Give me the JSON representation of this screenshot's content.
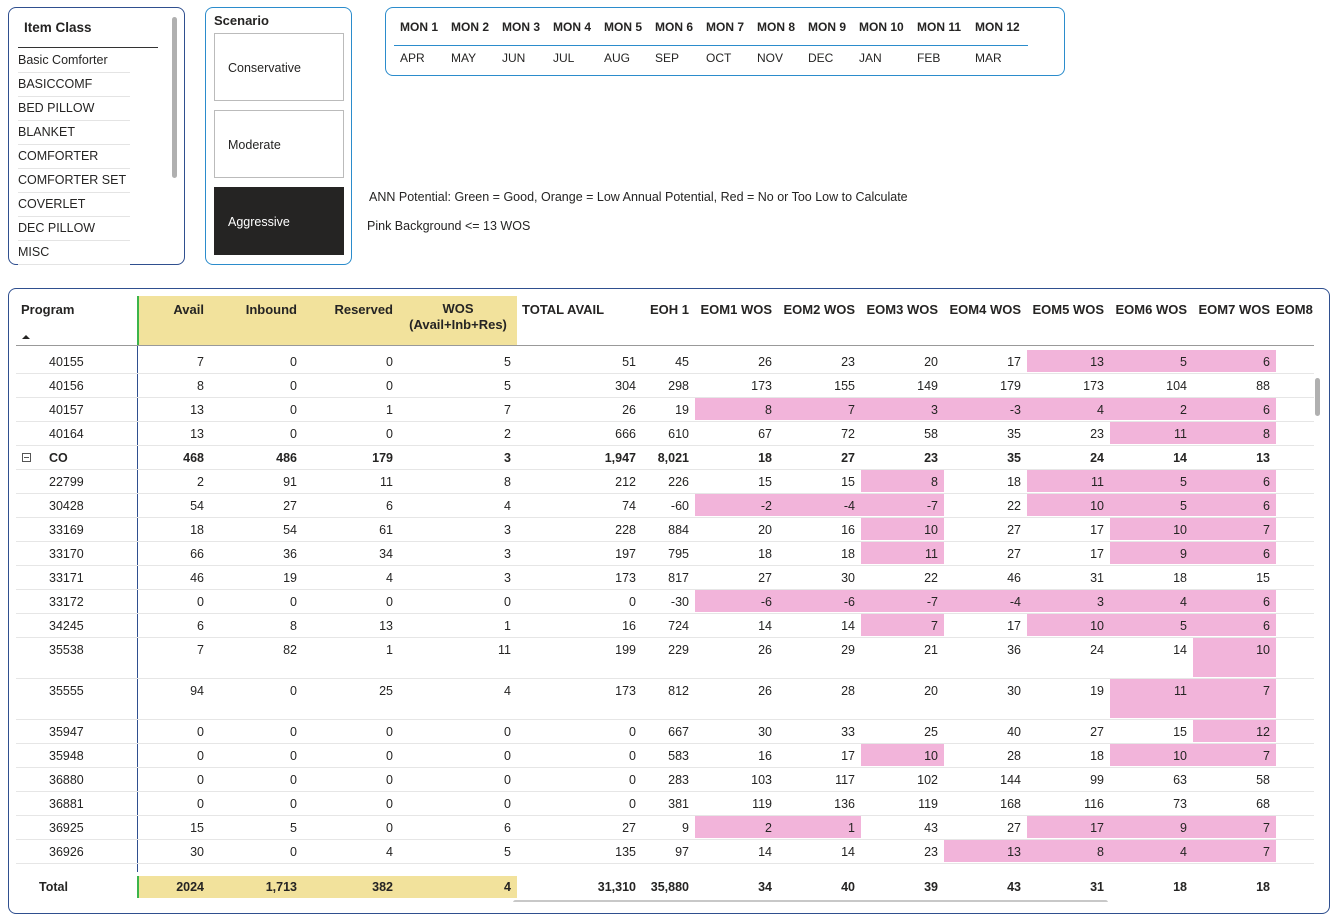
{
  "item_class": {
    "title": "Item Class",
    "items": [
      "Basic Comforter",
      "BASICCOMF",
      "BED PILLOW",
      "BLANKET",
      "COMFORTER",
      "COMFORTER SET",
      "COVERLET",
      "DEC PILLOW",
      "MISC"
    ]
  },
  "scenario": {
    "title": "Scenario",
    "options": [
      "Conservative",
      "Moderate",
      "Aggressive"
    ],
    "selected": 2
  },
  "months": {
    "headers": [
      "MON 1",
      "MON 2",
      "MON 3",
      "MON 4",
      "MON 5",
      "MON 6",
      "MON 7",
      "MON 8",
      "MON 9",
      "MON 10",
      "MON 11",
      "MON 12"
    ],
    "values": [
      "APR",
      "MAY",
      "JUN",
      "JUL",
      "AUG",
      "SEP",
      "OCT",
      "NOV",
      "DEC",
      "JAN",
      "FEB",
      "MAR"
    ]
  },
  "notes": [
    "ANN Potential: Green = Good, Orange = Low Annual Potential, Red = No or Too Low to Calculate",
    "Pink Background <= 13 WOS"
  ],
  "table": {
    "program_header": "Program",
    "columns": [
      "Avail",
      "Inbound",
      "Reserved",
      "WOS\n(Avail+Inb+Res)",
      "TOTAL AVAIL",
      "EOH 1",
      "EOM1 WOS",
      "EOM2 WOS",
      "EOM3 WOS",
      "EOM4 WOS",
      "EOM5 WOS",
      "EOM6 WOS",
      "EOM7 WOS",
      "EOM8"
    ],
    "rows": [
      {
        "program": "40155",
        "cells": [
          7,
          0,
          0,
          5,
          51,
          45,
          26,
          23,
          20,
          17,
          13,
          5,
          6
        ],
        "pink": [
          10,
          11,
          12
        ]
      },
      {
        "program": "40156",
        "cells": [
          8,
          0,
          0,
          5,
          304,
          298,
          173,
          155,
          149,
          179,
          173,
          104,
          88
        ],
        "pink": []
      },
      {
        "program": "40157",
        "cells": [
          13,
          0,
          1,
          7,
          26,
          19,
          8,
          7,
          3,
          -3,
          4,
          2,
          6
        ],
        "pink": [
          6,
          7,
          8,
          9,
          10,
          11,
          12
        ]
      },
      {
        "program": "40164",
        "cells": [
          13,
          0,
          0,
          2,
          666,
          610,
          67,
          72,
          58,
          35,
          23,
          11,
          8
        ],
        "pink": [
          11,
          12
        ]
      },
      {
        "program": "CO",
        "cells": [
          468,
          486,
          179,
          3,
          "1,947",
          "8,021",
          18,
          27,
          23,
          35,
          24,
          14,
          13
        ],
        "pink": [],
        "bold": true
      },
      {
        "program": "22799",
        "cells": [
          2,
          91,
          11,
          8,
          212,
          226,
          15,
          15,
          8,
          18,
          11,
          5,
          6
        ],
        "pink": [
          8,
          10,
          11,
          12
        ]
      },
      {
        "program": "30428",
        "cells": [
          54,
          27,
          6,
          4,
          74,
          -60,
          -2,
          -4,
          -7,
          22,
          10,
          5,
          6
        ],
        "pink": [
          6,
          7,
          8,
          10,
          11,
          12
        ]
      },
      {
        "program": "33169",
        "cells": [
          18,
          54,
          61,
          3,
          228,
          884,
          20,
          16,
          10,
          27,
          17,
          10,
          7
        ],
        "pink": [
          8,
          11,
          12
        ]
      },
      {
        "program": "33170",
        "cells": [
          66,
          36,
          34,
          3,
          197,
          795,
          18,
          18,
          11,
          27,
          17,
          9,
          6
        ],
        "pink": [
          8,
          11,
          12
        ]
      },
      {
        "program": "33171",
        "cells": [
          46,
          19,
          4,
          3,
          173,
          817,
          27,
          30,
          22,
          46,
          31,
          18,
          15
        ],
        "pink": []
      },
      {
        "program": "33172",
        "cells": [
          0,
          0,
          0,
          0,
          0,
          -30,
          -6,
          -6,
          -7,
          -4,
          3,
          4,
          6
        ],
        "pink": [
          6,
          7,
          8,
          9,
          10,
          11,
          12
        ]
      },
      {
        "program": "34245",
        "cells": [
          6,
          8,
          13,
          1,
          16,
          724,
          14,
          14,
          7,
          17,
          10,
          5,
          6
        ],
        "pink": [
          8,
          10,
          11,
          12
        ]
      },
      {
        "program": "35538",
        "cells": [
          7,
          82,
          1,
          11,
          199,
          229,
          26,
          29,
          21,
          36,
          24,
          14,
          10
        ],
        "pink": [
          12
        ]
      },
      {
        "program": "35555",
        "cells": [
          94,
          0,
          25,
          4,
          173,
          812,
          26,
          28,
          20,
          30,
          19,
          11,
          7
        ],
        "pink": [
          11,
          12
        ]
      },
      {
        "program": "35947",
        "cells": [
          0,
          0,
          0,
          0,
          0,
          667,
          30,
          33,
          25,
          40,
          27,
          15,
          12
        ],
        "pink": [
          12
        ]
      },
      {
        "program": "35948",
        "cells": [
          0,
          0,
          0,
          0,
          0,
          583,
          16,
          17,
          10,
          28,
          18,
          10,
          7
        ],
        "pink": [
          8,
          11,
          12
        ]
      },
      {
        "program": "36880",
        "cells": [
          0,
          0,
          0,
          0,
          0,
          283,
          103,
          117,
          102,
          144,
          99,
          63,
          58
        ],
        "pink": []
      },
      {
        "program": "36881",
        "cells": [
          0,
          0,
          0,
          0,
          0,
          381,
          119,
          136,
          119,
          168,
          116,
          73,
          68
        ],
        "pink": []
      },
      {
        "program": "36925",
        "cells": [
          15,
          5,
          0,
          6,
          27,
          9,
          2,
          1,
          43,
          27,
          17,
          9,
          7
        ],
        "pink": [
          6,
          7,
          10,
          11,
          12
        ]
      },
      {
        "program": "36926",
        "cells": [
          30,
          0,
          4,
          5,
          135,
          97,
          14,
          14,
          23,
          13,
          8,
          4,
          7
        ],
        "pink": [
          9,
          10,
          11,
          12
        ]
      }
    ],
    "total": {
      "label": "Total",
      "cells": [
        2024,
        "1,713",
        382,
        4,
        "31,310",
        "35,880",
        34,
        40,
        39,
        43,
        31,
        18,
        18
      ]
    }
  }
}
